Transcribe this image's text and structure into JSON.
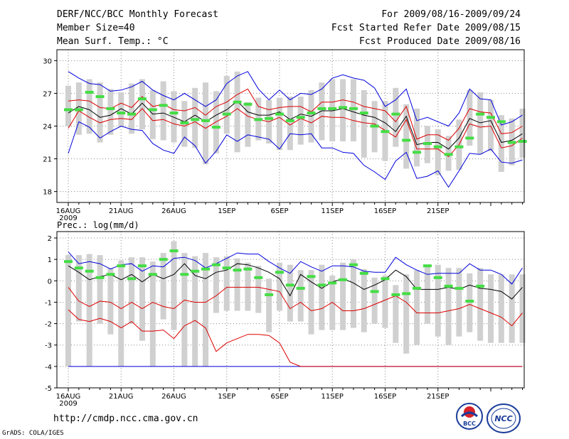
{
  "header": {
    "title": "DERF/NCC/BCC Monthly Forecast",
    "member": "Member Size=40",
    "variable": "Mean Surf. Temp.: °C",
    "period": "For 2009/08/16-2009/09/24",
    "refer": "Fcst Started Refer Date 2009/08/15",
    "produced": "Fcst Produced Date 2009/08/16"
  },
  "footer": {
    "url": "http://cmdp.ncc.cma.gov.cn",
    "grads": "GrADS: COLA/IGES"
  },
  "logos": {
    "bcc": "BCC",
    "ncc": "NCC"
  },
  "colors": {
    "envelope": "#0000dd",
    "spread": "#dd0000",
    "mean": "#000000",
    "obs": "#44dd44",
    "box": "#d0d0d0"
  },
  "chart_data": [
    {
      "type": "line",
      "title": "Mean Surf. Temp.: °C",
      "x_tick_labels": [
        "16AUG",
        "21AUG",
        "26AUG",
        "1SEP",
        "6SEP",
        "11SEP",
        "16SEP",
        "21SEP"
      ],
      "year_label": "2009",
      "yticks": [
        18,
        21,
        24,
        27,
        30
      ],
      "ylim": [
        17,
        31
      ],
      "series": [
        {
          "name": "max",
          "values": [
            29.0,
            28.4,
            27.9,
            27.8,
            27.2,
            27.3,
            27.6,
            28.1,
            27.3,
            26.8,
            26.4,
            27.0,
            26.4,
            25.8,
            26.4,
            27.9,
            28.6,
            29.0,
            27.4,
            26.4,
            27.3,
            26.4,
            27.0,
            26.9,
            27.4,
            28.4,
            28.7,
            28.4,
            28.2,
            27.5,
            25.8,
            26.4,
            27.4,
            24.5,
            24.8,
            24.4,
            24.0,
            25.2,
            27.4,
            26.5,
            26.4,
            24.1,
            24.4,
            25.0
          ]
        },
        {
          "name": "upper",
          "values": [
            26.3,
            26.4,
            26.3,
            25.7,
            25.6,
            26.1,
            25.7,
            26.7,
            25.8,
            26.0,
            25.5,
            25.4,
            25.7,
            25.0,
            25.8,
            26.2,
            26.9,
            27.4,
            25.8,
            25.5,
            25.7,
            25.8,
            25.8,
            25.3,
            26.2,
            26.2,
            26.4,
            26.2,
            25.8,
            25.6,
            25.4,
            24.4,
            25.8,
            22.8,
            23.2,
            23.2,
            22.7,
            23.8,
            25.6,
            25.3,
            25.2,
            23.3,
            23.4,
            24.0
          ]
        },
        {
          "name": "mean",
          "values": [
            25.2,
            25.8,
            25.5,
            24.8,
            25.0,
            25.6,
            25.1,
            26.1,
            25.1,
            25.2,
            24.8,
            24.4,
            25.0,
            24.4,
            25.0,
            25.5,
            26.3,
            25.3,
            25.0,
            25.0,
            25.3,
            24.6,
            25.1,
            24.9,
            25.4,
            25.4,
            25.6,
            25.3,
            25.0,
            24.8,
            24.3,
            23.5,
            24.9,
            22.3,
            22.5,
            22.5,
            21.9,
            22.9,
            24.7,
            24.3,
            24.5,
            22.5,
            22.7,
            23.3
          ]
        },
        {
          "name": "lower",
          "values": [
            23.8,
            25.4,
            24.8,
            24.3,
            24.6,
            24.7,
            24.6,
            25.6,
            24.5,
            24.6,
            24.2,
            24.0,
            24.4,
            23.8,
            24.4,
            24.9,
            25.6,
            24.9,
            24.6,
            24.4,
            24.8,
            24.1,
            24.7,
            24.3,
            24.9,
            24.8,
            24.8,
            24.5,
            24.3,
            24.2,
            23.6,
            23.0,
            24.6,
            21.9,
            21.9,
            21.9,
            21.2,
            22.3,
            24.2,
            23.9,
            24.0,
            22.0,
            22.2,
            22.9
          ]
        },
        {
          "name": "min",
          "values": [
            21.5,
            24.4,
            23.9,
            22.9,
            23.5,
            24.0,
            23.7,
            23.6,
            22.4,
            21.8,
            21.5,
            23.0,
            22.2,
            20.6,
            21.7,
            23.2,
            22.6,
            23.2,
            23.0,
            22.8,
            21.9,
            23.3,
            23.2,
            23.3,
            22.0,
            22.0,
            21.6,
            21.5,
            20.4,
            19.8,
            19.1,
            20.8,
            21.6,
            19.2,
            19.4,
            19.9,
            18.4,
            19.9,
            21.5,
            21.4,
            21.9,
            20.7,
            20.6,
            20.9
          ]
        },
        {
          "name": "observed",
          "values": [
            25.5,
            25.5,
            27.1,
            26.7,
            25.6,
            25.2,
            25.1,
            26.5,
            25.5,
            25.9,
            25.2,
            24.3,
            24.6,
            24.5,
            23.9,
            25.1,
            26.2,
            26.0,
            24.6,
            24.7,
            25.1,
            24.5,
            24.8,
            25.2,
            25.6,
            25.6,
            25.7,
            25.6,
            25.2,
            24.0,
            23.5,
            25.1,
            22.7,
            21.6,
            22.4,
            22.1,
            21.4,
            22.1,
            22.9,
            25.1,
            24.8,
            24.4,
            22.5,
            22.6
          ]
        },
        {
          "name": "box_top",
          "values": [
            27.7,
            28.0,
            28.3,
            28.0,
            27.4,
            27.1,
            27.9,
            28.3,
            27.3,
            28.1,
            27.2,
            26.3,
            27.5,
            28.0,
            27.2,
            28.6,
            29.0,
            26.2,
            26.6,
            26.4,
            26.6,
            26.7,
            26.7,
            27.3,
            28.0,
            28.3,
            28.3,
            28.3,
            27.3,
            26.3,
            26.3,
            27.5,
            26.0,
            25.6,
            24.0,
            23.7,
            23.1,
            24.6,
            27.3,
            27.1,
            26.4,
            25.0,
            24.7,
            25.6
          ]
        },
        {
          "name": "box_bottom",
          "values": [
            24.0,
            23.2,
            23.3,
            22.5,
            23.2,
            23.9,
            23.3,
            23.7,
            22.8,
            22.7,
            22.5,
            22.1,
            22.0,
            20.5,
            21.5,
            23.3,
            21.6,
            22.1,
            22.7,
            22.4,
            21.8,
            21.8,
            22.3,
            22.5,
            22.7,
            22.6,
            22.6,
            22.6,
            21.1,
            21.6,
            20.8,
            22.1,
            20.1,
            20.3,
            20.6,
            19.5,
            19.9,
            20.0,
            22.2,
            21.4,
            21.7,
            19.8,
            20.4,
            21.1
          ]
        }
      ]
    },
    {
      "type": "line",
      "title": "Prec.: log(mm/d)",
      "x_tick_labels": [
        "16AUG",
        "21AUG",
        "26AUG",
        "1SEP",
        "6SEP",
        "11SEP",
        "16SEP",
        "21SEP"
      ],
      "year_label": "2009",
      "yticks": [
        -5,
        -4,
        -3,
        -2,
        -1,
        0,
        1,
        2
      ],
      "ylim": [
        -5,
        2.3
      ],
      "series": [
        {
          "name": "max",
          "values": [
            1.35,
            0.8,
            0.9,
            0.8,
            0.55,
            0.75,
            0.8,
            0.45,
            0.7,
            0.65,
            1.05,
            1.1,
            0.95,
            0.6,
            0.8,
            1.05,
            1.3,
            1.25,
            1.25,
            0.9,
            0.6,
            0.35,
            0.9,
            0.65,
            0.45,
            0.7,
            0.7,
            0.65,
            0.45,
            0.4,
            0.4,
            1.1,
            0.75,
            0.5,
            0.3,
            0.35,
            0.35,
            0.35,
            0.8,
            0.5,
            0.5,
            0.3,
            -0.15,
            0.6
          ]
        },
        {
          "name": "mean",
          "values": [
            0.7,
            0.4,
            0.05,
            0.2,
            0.3,
            0.05,
            0.3,
            -0.05,
            0.3,
            0.1,
            0.3,
            0.8,
            0.25,
            0.1,
            0.4,
            0.5,
            0.8,
            0.75,
            0.6,
            0.4,
            0.1,
            -0.7,
            0.3,
            -0.05,
            -0.35,
            -0.05,
            0.1,
            -0.1,
            -0.4,
            -0.2,
            0.05,
            0.5,
            0.2,
            -0.4,
            -0.4,
            -0.4,
            -0.3,
            -0.4,
            -0.2,
            -0.35,
            -0.4,
            -0.5,
            -0.85,
            -0.3
          ]
        },
        {
          "name": "lower",
          "values": [
            -0.3,
            -0.95,
            -1.2,
            -0.95,
            -1.0,
            -1.3,
            -1.0,
            -1.3,
            -1.0,
            -1.2,
            -1.3,
            -0.9,
            -1.0,
            -1.0,
            -0.7,
            -0.3,
            -0.3,
            -0.3,
            -0.3,
            -0.4,
            -0.5,
            -1.3,
            -1.0,
            -1.4,
            -1.3,
            -1.0,
            -1.4,
            -1.4,
            -1.3,
            -1.1,
            -0.9,
            -0.7,
            -1.0,
            -1.5,
            -1.5,
            -1.5,
            -1.4,
            -1.3,
            -1.1,
            -1.3,
            -1.5,
            -1.7,
            -2.1,
            -1.5
          ]
        },
        {
          "name": "upper_lower",
          "values": [
            -1.35,
            -1.8,
            -1.9,
            -1.75,
            -1.9,
            -2.2,
            -1.9,
            -2.35,
            -2.35,
            -2.3,
            -2.7,
            -2.1,
            -1.85,
            -2.2,
            -3.3,
            -2.9,
            -2.7,
            -2.5,
            -2.5,
            -2.55,
            -2.9,
            -3.8,
            -4.0,
            -4.0,
            -4.0,
            -4.0,
            -4.0,
            -4.0,
            -4.0,
            -4.0,
            -4.0,
            -4.0,
            -4.0,
            -4.0,
            -4.0,
            -4.0,
            -4.0,
            -4.0,
            -4.0,
            -4.0,
            -4.0,
            -4.0,
            -4.0,
            -4.0
          ]
        },
        {
          "name": "min",
          "values": [
            -4.0,
            -4.0,
            -4.0,
            -4.0,
            -4.0,
            -4.0,
            -4.0,
            -4.0,
            -4.0,
            -4.0,
            -4.0,
            -4.0,
            -4.0,
            -4.0,
            -4.0,
            -4.0,
            -4.0,
            -4.0,
            -4.0,
            -4.0,
            -4.0,
            -4.0,
            -4.0,
            -4.0,
            -4.0,
            -4.0,
            -4.0,
            -4.0,
            -4.0,
            -4.0,
            -4.0,
            -4.0,
            -4.0,
            -4.0,
            -4.0,
            -4.0,
            -4.0,
            -4.0,
            -4.0,
            -4.0,
            -4.0,
            -4.0,
            -4.0,
            -4.0
          ]
        },
        {
          "name": "observed",
          "values": [
            0.9,
            0.6,
            0.45,
            0.15,
            0.3,
            0.7,
            0.1,
            0.7,
            0.3,
            1.0,
            1.4,
            0.3,
            0.45,
            0.55,
            0.75,
            0.6,
            0.5,
            0.55,
            0.15,
            -0.65,
            0.4,
            -0.2,
            -0.35,
            0.2,
            -0.2,
            -0.1,
            0.05,
            0.75,
            0.35,
            -0.5,
            0.1,
            -0.65,
            -0.6,
            -0.35,
            0.7,
            0.15,
            -0.25,
            -0.35,
            -0.95,
            -0.25,
            null,
            null,
            null,
            null
          ]
        },
        {
          "name": "box_top",
          "values": [
            1.2,
            1.2,
            1.25,
            1.2,
            0.6,
            0.95,
            1.1,
            1.1,
            0.9,
            1.3,
            1.85,
            1.3,
            1.15,
            1.3,
            1.1,
            1.15,
            1.05,
            0.85,
            0.7,
            0.1,
            0.85,
            0.75,
            0.5,
            0.5,
            0.75,
            0.25,
            0.85,
            1.0,
            0.55,
            0.15,
            0.25,
            -0.2,
            0.3,
            0.5,
            0.75,
            0.75,
            0.6,
            0.6,
            0.35,
            0.6,
            0.3,
            0.3,
            0.3,
            0.3
          ]
        },
        {
          "name": "box_bottom",
          "values": [
            -4.0,
            -1.9,
            -4.0,
            -2.0,
            -2.5,
            -4.0,
            -2.0,
            -2.8,
            -4.0,
            -1.8,
            -2.3,
            -4.0,
            -4.0,
            -4.0,
            -1.5,
            -1.4,
            -1.4,
            -1.4,
            -1.5,
            -2.4,
            -1.4,
            -1.9,
            -1.9,
            -2.5,
            -2.3,
            -2.3,
            -2.3,
            -2.2,
            -2.4,
            -2.0,
            -2.2,
            -2.9,
            -3.4,
            -3.0,
            -2.0,
            -2.6,
            -3.0,
            -2.6,
            -2.4,
            -2.8,
            -2.9,
            -2.9,
            -2.9,
            -2.9
          ]
        }
      ]
    }
  ]
}
